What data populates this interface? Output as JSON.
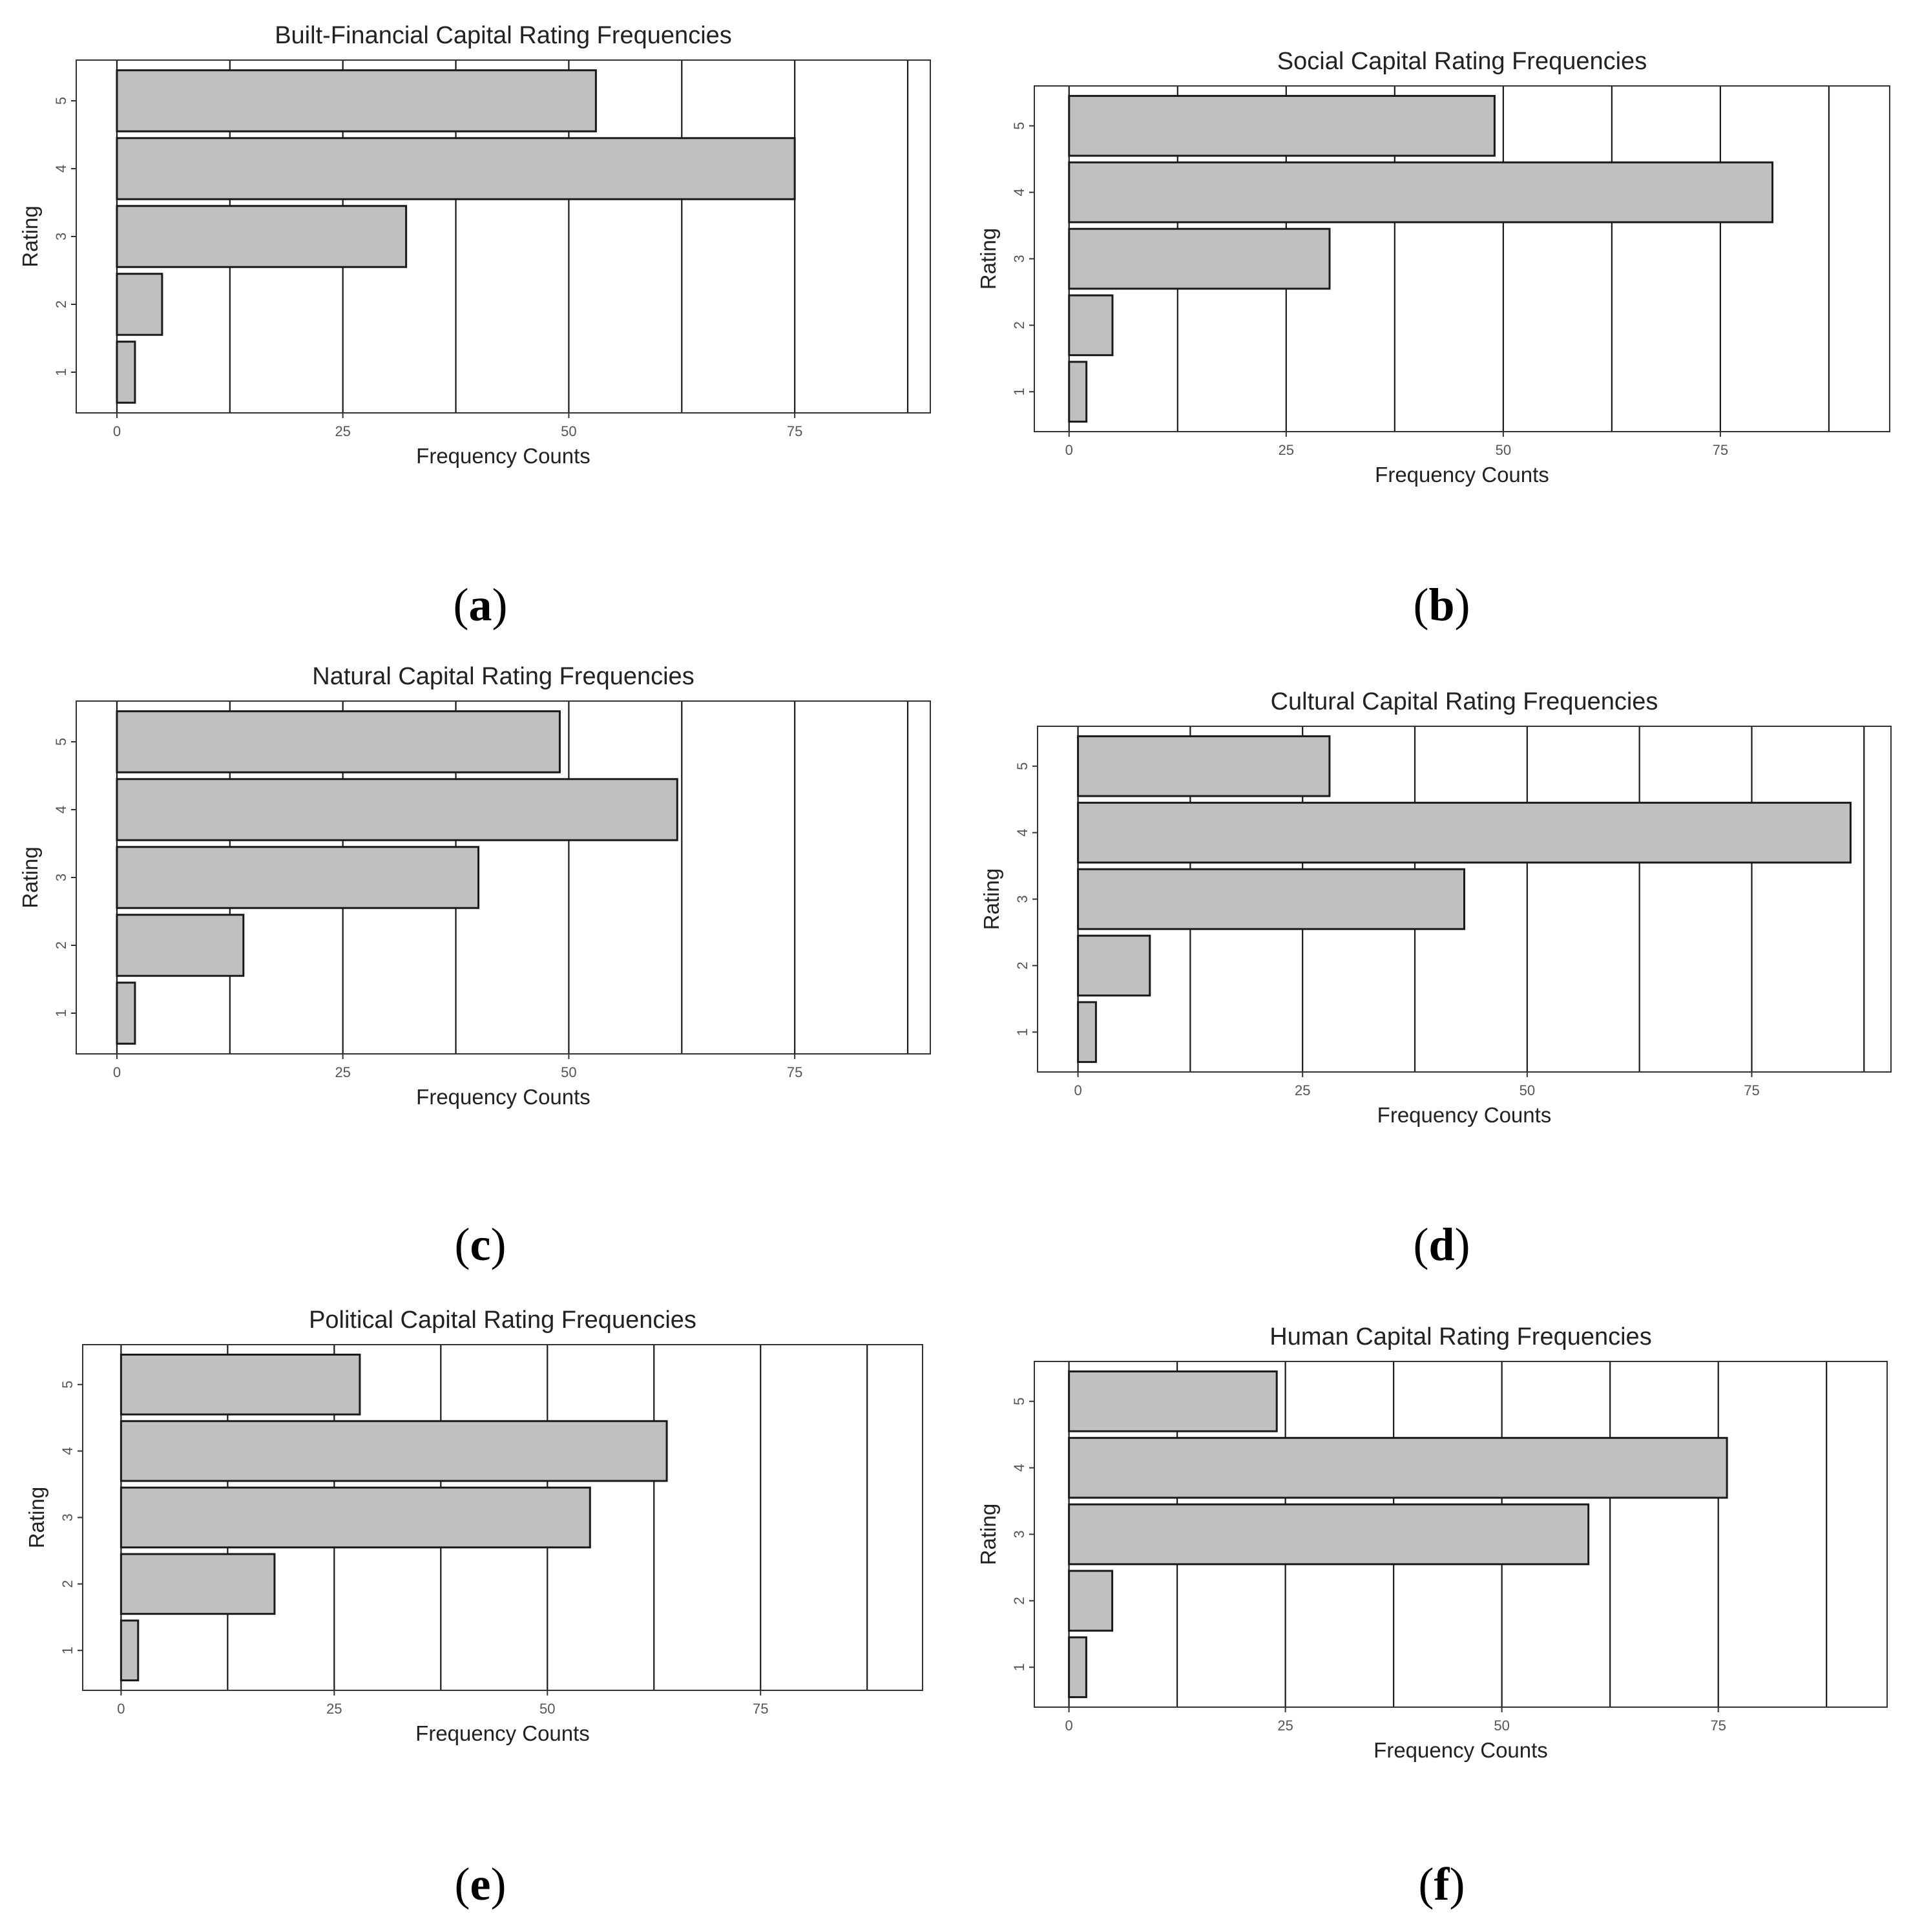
{
  "chart_data": [
    {
      "id": "a",
      "type": "bar",
      "orientation": "horizontal",
      "title": "Built-Financial Capital Rating Frequencies",
      "xlabel": "Frequency Counts",
      "ylabel": "Rating",
      "categories": [
        "1",
        "2",
        "3",
        "4",
        "5"
      ],
      "values": [
        2,
        5,
        32,
        75,
        53
      ],
      "xticks": [
        "0",
        "25",
        "50",
        "75"
      ],
      "xlim": [
        -4.5,
        90
      ],
      "grid_lines": [
        0,
        12.5,
        25,
        37.5,
        50,
        62.5,
        75,
        87.5
      ],
      "bar_color": "#c0c0c0",
      "caption": "a"
    },
    {
      "id": "b",
      "type": "bar",
      "orientation": "horizontal",
      "title": "Social Capital Rating Frequencies",
      "xlabel": "Frequency Counts",
      "ylabel": "Rating",
      "categories": [
        "1",
        "2",
        "3",
        "4",
        "5"
      ],
      "values": [
        2,
        5,
        30,
        81,
        49
      ],
      "xticks": [
        "0",
        "25",
        "50",
        "75"
      ],
      "xlim": [
        -4,
        94.5
      ],
      "grid_lines": [
        0,
        12.5,
        25,
        37.5,
        50,
        62.5,
        75,
        87.5
      ],
      "bar_color": "#c0c0c0",
      "caption": "b"
    },
    {
      "id": "c",
      "type": "bar",
      "orientation": "horizontal",
      "title": "Natural Capital Rating Frequencies",
      "xlabel": "Frequency Counts",
      "ylabel": "Rating",
      "categories": [
        "1",
        "2",
        "3",
        "4",
        "5"
      ],
      "values": [
        2,
        14,
        40,
        62,
        49
      ],
      "xticks": [
        "0",
        "25",
        "50",
        "75"
      ],
      "xlim": [
        -4.5,
        90
      ],
      "grid_lines": [
        0,
        12.5,
        25,
        37.5,
        50,
        62.5,
        75,
        87.5
      ],
      "bar_color": "#c0c0c0",
      "caption": "c"
    },
    {
      "id": "d",
      "type": "bar",
      "orientation": "horizontal",
      "title": "Cultural Capital Rating Frequencies",
      "xlabel": "Frequency Counts",
      "ylabel": "Rating",
      "categories": [
        "1",
        "2",
        "3",
        "4",
        "5"
      ],
      "values": [
        2,
        8,
        43,
        86,
        28
      ],
      "xticks": [
        "0",
        "25",
        "50",
        "75"
      ],
      "xlim": [
        -4.5,
        90.5
      ],
      "grid_lines": [
        0,
        12.5,
        25,
        37.5,
        50,
        62.5,
        75,
        87.5
      ],
      "bar_color": "#c0c0c0",
      "caption": "d"
    },
    {
      "id": "e",
      "type": "bar",
      "orientation": "horizontal",
      "title": "Political Capital Rating Frequencies",
      "xlabel": "Frequency Counts",
      "ylabel": "Rating",
      "categories": [
        "1",
        "2",
        "3",
        "4",
        "5"
      ],
      "values": [
        2,
        18,
        55,
        64,
        28
      ],
      "xticks": [
        "0",
        "25",
        "50",
        "75"
      ],
      "xlim": [
        -4.5,
        94
      ],
      "grid_lines": [
        0,
        12.5,
        25,
        37.5,
        50,
        62.5,
        75,
        87.5
      ],
      "bar_color": "#c0c0c0",
      "caption": "e"
    },
    {
      "id": "f",
      "type": "bar",
      "orientation": "horizontal",
      "title": "Human Capital Rating Frequencies",
      "xlabel": "Frequency Counts",
      "ylabel": "Rating",
      "categories": [
        "1",
        "2",
        "3",
        "4",
        "5"
      ],
      "values": [
        2,
        5,
        60,
        76,
        24
      ],
      "xticks": [
        "0",
        "25",
        "50",
        "75"
      ],
      "xlim": [
        -4,
        94.5
      ],
      "grid_lines": [
        0,
        12.5,
        25,
        37.5,
        50,
        62.5,
        75,
        87.5
      ],
      "bar_color": "#c0c0c0",
      "caption": "f"
    }
  ]
}
